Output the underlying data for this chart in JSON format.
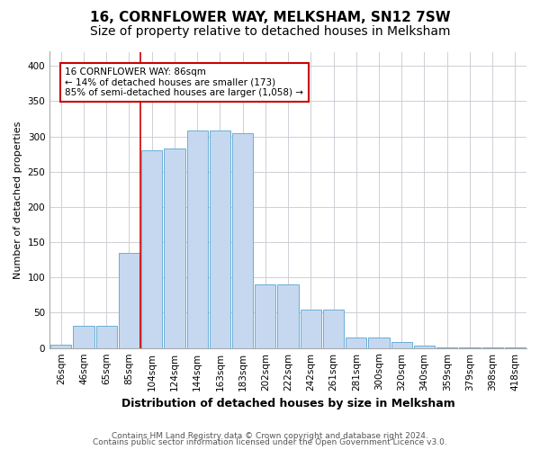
{
  "title": "16, CORNFLOWER WAY, MELKSHAM, SN12 7SW",
  "subtitle": "Size of property relative to detached houses in Melksham",
  "xlabel": "Distribution of detached houses by size in Melksham",
  "ylabel": "Number of detached properties",
  "categories": [
    "26sqm",
    "46sqm",
    "65sqm",
    "85sqm",
    "104sqm",
    "124sqm",
    "144sqm",
    "163sqm",
    "183sqm",
    "202sqm",
    "222sqm",
    "242sqm",
    "261sqm",
    "281sqm",
    "300sqm",
    "320sqm",
    "340sqm",
    "359sqm",
    "379sqm",
    "398sqm",
    "418sqm"
  ],
  "values": [
    5,
    32,
    32,
    135,
    280,
    283,
    308,
    308,
    305,
    90,
    90,
    55,
    55,
    15,
    15,
    8,
    3,
    1,
    1,
    1,
    1
  ],
  "bar_color": "#c5d8f0",
  "bar_edge_color": "#6baed6",
  "vline_x": 3.5,
  "vline_color": "#cc0000",
  "annotation_text": "16 CORNFLOWER WAY: 86sqm\n← 14% of detached houses are smaller (173)\n85% of semi-detached houses are larger (1,058) →",
  "annotation_box_color": "#ffffff",
  "annotation_box_edge_color": "#cc0000",
  "ylim": [
    0,
    420
  ],
  "yticks": [
    0,
    50,
    100,
    150,
    200,
    250,
    300,
    350,
    400
  ],
  "footer1": "Contains HM Land Registry data © Crown copyright and database right 2024.",
  "footer2": "Contains public sector information licensed under the Open Government Licence v3.0.",
  "bg_color": "#ffffff",
  "grid_color": "#c8c8d0",
  "title_fontsize": 11,
  "subtitle_fontsize": 10,
  "tick_fontsize": 7.5,
  "ylabel_fontsize": 8,
  "xlabel_fontsize": 9,
  "footer_fontsize": 6.5
}
